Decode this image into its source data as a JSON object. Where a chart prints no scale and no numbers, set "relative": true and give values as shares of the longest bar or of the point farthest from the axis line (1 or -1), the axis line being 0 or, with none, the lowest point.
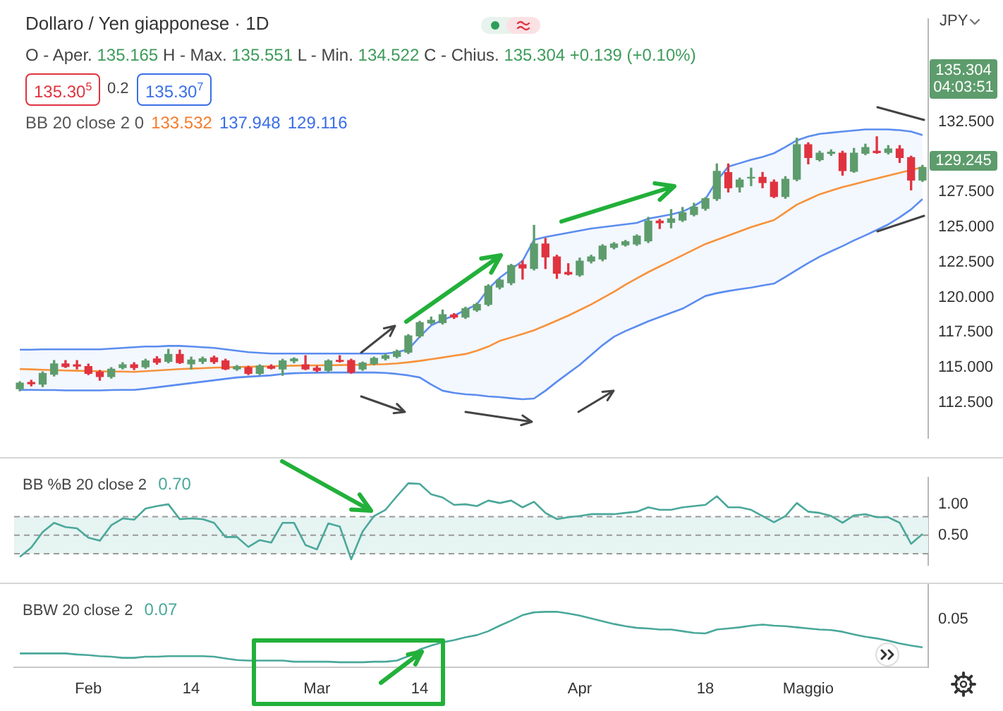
{
  "chart_data": [
    {
      "type": "candlestick",
      "title": "Dollaro / Yen giapponese · 1D",
      "annotations": [
        "O - Aper. 135.165 H - Max. 135.551 L - Min. 134.522 C - Chius. 135.304 +0.139 (+0.10%)",
        "135.30$^{5}$",
        "0.2",
        "135.30$^{7}$",
        "BB 20 close 2 0",
        "133.532",
        "137.948",
        "129.116",
        "JPY",
        "135.304",
        "04:03:51",
        "129.245"
      ],
      "categories": [
        null,
        null,
        null,
        null,
        null,
        null,
        null,
        null,
        null,
        null,
        null,
        null,
        null,
        null,
        null,
        null,
        null,
        null,
        null,
        null,
        null,
        null,
        null,
        null,
        null,
        null,
        null,
        null,
        null,
        null,
        null,
        null,
        null,
        null,
        null,
        null,
        null,
        null,
        null,
        null,
        null,
        null,
        null,
        null,
        null,
        null,
        null,
        null,
        null,
        null,
        null,
        null,
        null,
        null,
        null,
        null,
        null,
        null,
        null,
        null,
        null,
        null,
        null,
        null,
        null,
        null,
        null,
        null,
        null,
        null,
        null,
        null,
        null,
        null,
        null,
        null,
        null,
        null,
        null,
        null
      ],
      "ohlc": [
        [
          113.5,
          114.0,
          113.35,
          113.9
        ],
        [
          113.95,
          114.1,
          113.7,
          113.85
        ],
        [
          113.82,
          114.7,
          113.65,
          114.59
        ],
        [
          114.53,
          115.5,
          114.4,
          115.26
        ],
        [
          115.26,
          115.5,
          115.0,
          115.08
        ],
        [
          115.2,
          115.5,
          114.9,
          115.1
        ],
        [
          115.08,
          115.25,
          114.5,
          114.59
        ],
        [
          114.68,
          114.8,
          114.1,
          114.37
        ],
        [
          114.37,
          115.0,
          114.25,
          114.89
        ],
        [
          115.0,
          115.35,
          114.9,
          115.2
        ],
        [
          115.2,
          115.35,
          114.85,
          115.0
        ],
        [
          115.05,
          115.6,
          114.95,
          115.48
        ],
        [
          115.62,
          115.78,
          115.25,
          115.38
        ],
        [
          115.45,
          116.3,
          115.35,
          115.94
        ],
        [
          115.94,
          116.25,
          115.3,
          115.36
        ],
        [
          115.27,
          115.75,
          114.9,
          115.54
        ],
        [
          115.45,
          115.75,
          115.3,
          115.63
        ],
        [
          115.7,
          115.82,
          115.3,
          115.42
        ],
        [
          115.48,
          115.6,
          114.85,
          114.9
        ],
        [
          114.9,
          115.15,
          114.8,
          115.07
        ],
        [
          115.0,
          115.1,
          114.5,
          114.59
        ],
        [
          114.59,
          115.2,
          114.5,
          115.11
        ],
        [
          115.08,
          115.2,
          114.9,
          114.96
        ],
        [
          114.9,
          115.6,
          114.45,
          115.48
        ],
        [
          115.48,
          115.7,
          115.35,
          115.62
        ],
        [
          115.2,
          115.85,
          114.85,
          114.9
        ],
        [
          114.96,
          115.1,
          114.7,
          114.8
        ],
        [
          114.8,
          115.55,
          114.7,
          115.48
        ],
        [
          115.52,
          115.85,
          115.4,
          115.44
        ],
        [
          115.5,
          115.6,
          114.6,
          114.68
        ],
        [
          114.9,
          115.4,
          114.8,
          115.33
        ],
        [
          115.3,
          115.75,
          115.2,
          115.66
        ],
        [
          115.66,
          115.95,
          115.55,
          115.85
        ],
        [
          115.8,
          116.25,
          115.7,
          116.15
        ],
        [
          116.1,
          117.35,
          116.0,
          117.26
        ],
        [
          117.26,
          118.3,
          117.15,
          118.2
        ],
        [
          118.18,
          118.6,
          118.1,
          118.37
        ],
        [
          118.2,
          119.1,
          118.1,
          118.77
        ],
        [
          118.75,
          118.85,
          118.5,
          118.6
        ],
        [
          118.6,
          119.3,
          118.5,
          119.2
        ],
        [
          119.1,
          119.6,
          119.0,
          119.5
        ],
        [
          119.5,
          120.9,
          119.4,
          120.8
        ],
        [
          120.73,
          121.3,
          120.6,
          121.23
        ],
        [
          121.04,
          122.35,
          120.9,
          122.27
        ],
        [
          122.33,
          122.6,
          121.3,
          122.09
        ],
        [
          122.06,
          125.13,
          121.95,
          123.8
        ],
        [
          123.8,
          124.2,
          122.05,
          122.88
        ],
        [
          122.88,
          123.0,
          121.35,
          121.72
        ],
        [
          121.78,
          122.4,
          121.6,
          121.66
        ],
        [
          121.6,
          122.8,
          121.5,
          122.58
        ],
        [
          122.58,
          123.0,
          122.45,
          122.88
        ],
        [
          122.73,
          123.75,
          122.6,
          123.65
        ],
        [
          123.56,
          123.9,
          123.45,
          123.8
        ],
        [
          123.74,
          124.05,
          123.65,
          123.96
        ],
        [
          123.8,
          124.45,
          123.7,
          124.36
        ],
        [
          124.02,
          125.7,
          123.9,
          125.43
        ],
        [
          125.43,
          125.55,
          124.9,
          125.31
        ],
        [
          125.34,
          126.25,
          124.95,
          125.59
        ],
        [
          125.5,
          126.4,
          125.4,
          126.02
        ],
        [
          125.9,
          126.7,
          125.8,
          126.42
        ],
        [
          126.33,
          127.1,
          126.2,
          127.03
        ],
        [
          127.03,
          129.5,
          126.9,
          128.97
        ],
        [
          128.88,
          129.5,
          127.5,
          127.8
        ],
        [
          127.86,
          128.5,
          127.5,
          128.35
        ],
        [
          128.5,
          129.2,
          127.95,
          128.55
        ],
        [
          128.54,
          128.9,
          127.8,
          128.17
        ],
        [
          128.2,
          128.35,
          127.1,
          127.18
        ],
        [
          127.18,
          128.6,
          127.05,
          128.41
        ],
        [
          128.41,
          131.33,
          128.3,
          130.87
        ],
        [
          130.87,
          131.0,
          129.5,
          129.95
        ],
        [
          129.8,
          130.4,
          129.7,
          130.26
        ],
        [
          130.24,
          130.5,
          130.1,
          130.34
        ],
        [
          130.26,
          130.4,
          128.7,
          129.03
        ],
        [
          128.97,
          130.6,
          128.9,
          130.26
        ],
        [
          130.26,
          130.9,
          130.15,
          130.66
        ],
        [
          130.4,
          131.43,
          130.25,
          130.3
        ],
        [
          130.32,
          130.8,
          130.2,
          130.57
        ],
        [
          130.57,
          130.8,
          129.6,
          129.95
        ],
        [
          129.95,
          130.05,
          127.65,
          128.35
        ],
        [
          128.35,
          129.4,
          128.25,
          129.245
        ]
      ],
      "colors": [
        "#5d9c6c",
        "#e0333f",
        "#5d9c6c",
        "#5d9c6c",
        "#e0333f",
        "#e0333f",
        "#e0333f",
        "#e0333f",
        "#5d9c6c",
        "#5d9c6c",
        "#e0333f",
        "#5d9c6c",
        "#e0333f",
        "#5d9c6c",
        "#e0333f",
        "#5d9c6c",
        "#5d9c6c",
        "#e0333f",
        "#e0333f",
        "#5d9c6c",
        "#e0333f",
        "#5d9c6c",
        "#e0333f",
        "#5d9c6c",
        "#5d9c6c",
        "#e0333f",
        "#e0333f",
        "#5d9c6c",
        "#e0333f",
        "#e0333f",
        "#5d9c6c",
        "#5d9c6c",
        "#5d9c6c",
        "#5d9c6c",
        "#5d9c6c",
        "#5d9c6c",
        "#5d9c6c",
        "#5d9c6c",
        "#e0333f",
        "#5d9c6c",
        "#5d9c6c",
        "#5d9c6c",
        "#5d9c6c",
        "#5d9c6c",
        "#e0333f",
        "#5d9c6c",
        "#e0333f",
        "#e0333f",
        "#e0333f",
        "#5d9c6c",
        "#5d9c6c",
        "#5d9c6c",
        "#5d9c6c",
        "#5d9c6c",
        "#5d9c6c",
        "#5d9c6c",
        "#e0333f",
        "#5d9c6c",
        "#5d9c6c",
        "#5d9c6c",
        "#5d9c6c",
        "#5d9c6c",
        "#e0333f",
        "#5d9c6c",
        "#5d9c6c",
        "#e0333f",
        "#e0333f",
        "#5d9c6c",
        "#5d9c6c",
        "#e0333f",
        "#5d9c6c",
        "#5d9c6c",
        "#e0333f",
        "#5d9c6c",
        "#5d9c6c",
        "#e0333f",
        "#5d9c6c",
        "#e0333f",
        "#e0333f",
        "#5d9c6c"
      ],
      "series": [
        {
          "type": "line",
          "color": "#5b8def",
          "values": [
            116.28,
            116.28,
            116.3,
            116.3,
            116.3,
            116.3,
            116.3,
            116.3,
            116.35,
            116.4,
            116.45,
            116.5,
            116.5,
            116.55,
            116.55,
            116.5,
            116.45,
            116.4,
            116.3,
            116.2,
            116.1,
            116.05,
            116.0,
            116.0,
            116.0,
            116.0,
            116.0,
            116.0,
            116.0,
            116.0,
            116.0,
            116.0,
            116.0,
            116.1,
            116.3,
            117.2,
            118.0,
            118.4,
            118.7,
            119.1,
            119.5,
            120.6,
            121.4,
            122.0,
            122.6,
            124.1,
            124.3,
            124.45,
            124.6,
            124.75,
            124.9,
            125.0,
            125.1,
            125.2,
            125.3,
            125.6,
            125.75,
            125.9,
            126.1,
            126.5,
            127.0,
            128.3,
            129.3,
            129.55,
            129.8,
            130.0,
            130.26,
            130.7,
            131.18,
            131.45,
            131.64,
            131.72,
            131.8,
            131.88,
            131.95,
            131.95,
            131.95,
            131.9,
            131.8,
            131.55
          ]
        },
        {
          "type": "line",
          "color": "#5b8def",
          "values": [
            113.42,
            113.42,
            113.4,
            113.4,
            113.38,
            113.38,
            113.38,
            113.38,
            113.4,
            113.42,
            113.42,
            113.5,
            113.6,
            113.7,
            113.8,
            113.9,
            114.0,
            114.1,
            114.2,
            114.3,
            114.35,
            114.4,
            114.45,
            114.55,
            114.6,
            114.62,
            114.64,
            114.65,
            114.65,
            114.65,
            114.65,
            114.65,
            114.62,
            114.55,
            114.45,
            114.3,
            113.8,
            113.36,
            113.2,
            113.1,
            113.05,
            112.95,
            112.9,
            112.82,
            112.75,
            112.8,
            113.36,
            114.0,
            114.6,
            115.2,
            115.9,
            116.6,
            117.2,
            117.6,
            117.95,
            118.3,
            118.6,
            118.9,
            119.2,
            119.65,
            120.1,
            120.3,
            120.45,
            120.58,
            120.7,
            120.85,
            120.98,
            121.45,
            121.96,
            122.45,
            122.9,
            123.28,
            123.65,
            124.05,
            124.42,
            124.8,
            125.19,
            125.7,
            126.26,
            127.0
          ]
        },
        {
          "type": "line",
          "color": "#f7923a",
          "values": [
            114.9,
            114.88,
            114.85,
            114.82,
            114.8,
            114.78,
            114.76,
            114.74,
            114.72,
            114.72,
            114.7,
            114.75,
            114.8,
            114.85,
            114.9,
            114.93,
            114.96,
            115.0,
            115.02,
            115.04,
            115.06,
            115.08,
            115.1,
            115.12,
            115.14,
            115.15,
            115.16,
            115.17,
            115.18,
            115.2,
            115.2,
            115.22,
            115.25,
            115.3,
            115.38,
            115.48,
            115.6,
            115.72,
            115.85,
            115.97,
            116.2,
            116.5,
            116.9,
            117.15,
            117.4,
            117.66,
            118.0,
            118.35,
            118.7,
            119.1,
            119.5,
            119.95,
            120.4,
            120.9,
            121.35,
            121.8,
            122.2,
            122.6,
            123.0,
            123.4,
            123.8,
            124.1,
            124.4,
            124.7,
            125.0,
            125.25,
            125.5,
            126.05,
            126.6,
            126.97,
            127.34,
            127.6,
            127.85,
            128.05,
            128.26,
            128.46,
            128.66,
            128.87,
            129.07,
            129.27
          ],
          "upper": [
            116.28,
            116.28,
            116.3,
            116.3,
            116.3,
            116.3,
            116.3,
            116.3,
            116.35,
            116.4,
            116.45,
            116.5,
            116.5,
            116.55,
            116.55,
            116.5,
            116.45,
            116.4,
            116.3,
            116.2,
            116.1,
            116.05,
            116.0,
            116.0,
            116.0,
            116.0,
            116.0,
            116.0,
            116.0,
            116.0,
            116.0,
            116.0,
            116.0,
            116.1,
            116.3,
            117.2,
            118.0,
            118.4,
            118.7,
            119.1,
            119.5,
            120.6,
            121.4,
            122.0,
            122.6,
            124.1,
            124.3,
            124.45,
            124.6,
            124.75,
            124.9,
            125.0,
            125.1,
            125.2,
            125.3,
            125.6,
            125.75,
            125.9,
            126.1,
            126.5,
            127.0,
            128.3,
            129.3,
            129.55,
            129.8,
            130.0,
            130.26,
            130.7,
            131.18,
            131.45,
            131.64,
            131.72,
            131.8,
            131.88,
            131.95,
            131.95,
            131.95,
            131.9,
            131.8,
            131.55
          ],
          "lower": [
            113.42,
            113.42,
            113.4,
            113.4,
            113.38,
            113.38,
            113.38,
            113.38,
            113.4,
            113.42,
            113.42,
            113.5,
            113.6,
            113.7,
            113.8,
            113.9,
            114.0,
            114.1,
            114.2,
            114.3,
            114.35,
            114.4,
            114.45,
            114.55,
            114.6,
            114.62,
            114.64,
            114.65,
            114.65,
            114.65,
            114.65,
            114.65,
            114.62,
            114.55,
            114.45,
            114.3,
            113.8,
            113.36,
            113.2,
            113.1,
            113.05,
            112.95,
            112.9,
            112.82,
            112.75,
            112.8,
            113.36,
            114.0,
            114.6,
            115.2,
            115.9,
            116.6,
            117.2,
            117.6,
            117.95,
            118.3,
            118.6,
            118.9,
            119.2,
            119.65,
            120.1,
            120.3,
            120.45,
            120.58,
            120.7,
            120.85,
            120.98,
            121.45,
            121.96,
            122.45,
            122.9,
            123.28,
            123.65,
            124.05,
            124.42,
            124.8,
            125.19,
            125.7,
            126.26,
            127.0
          ]
        }
      ],
      "ylim": [
        110,
        139.8
      ],
      "yticks": [
        {
          "value": 112.5,
          "label": "112.500"
        },
        {
          "value": 115,
          "label": "115.000"
        },
        {
          "value": 117.5,
          "label": "117.500"
        },
        {
          "value": 120,
          "label": "120.000"
        },
        {
          "value": 122.5,
          "label": "122.500"
        },
        {
          "value": 125,
          "label": "125.000"
        },
        {
          "value": 127.5,
          "label": "127.500"
        },
        {
          "value": 132.5,
          "label": "132.500"
        }
      ],
      "marker": "none",
      "tick_labels": "y"
    },
    {
      "type": "line",
      "title": "BB %B 20 close 2",
      "annotations": [
        "0.70"
      ],
      "categories": [
        null,
        null,
        null,
        null,
        null,
        null,
        null,
        null,
        null,
        null,
        null,
        null,
        null,
        null,
        null,
        null,
        null,
        null,
        null,
        null,
        null,
        null,
        null,
        null,
        null,
        null,
        null,
        null,
        null,
        null,
        null,
        null,
        null,
        null,
        null,
        null,
        null,
        null,
        null,
        null,
        null,
        null,
        null,
        null,
        null,
        null,
        null,
        null,
        null,
        null,
        null,
        null,
        null,
        null,
        null,
        null,
        null,
        null,
        null,
        null,
        null,
        null,
        null,
        null,
        null,
        null,
        null,
        null,
        null,
        null,
        null,
        null,
        null,
        null,
        null,
        null,
        null,
        null,
        null,
        null
      ],
      "series": [
        {
          "color": "#4aa89a",
          "values": [
            0.15,
            0.3,
            0.55,
            0.7,
            0.63,
            0.61,
            0.46,
            0.41,
            0.66,
            0.77,
            0.75,
            0.93,
            0.97,
            1.0,
            0.76,
            0.77,
            0.76,
            0.7,
            0.47,
            0.47,
            0.31,
            0.42,
            0.38,
            0.7,
            0.7,
            0.34,
            0.27,
            0.69,
            0.64,
            0.11,
            0.56,
            0.81,
            0.91,
            1.13,
            1.34,
            1.33,
            1.16,
            1.11,
            0.99,
            1.0,
            0.97,
            1.06,
            1.02,
            1.06,
            0.95,
            1.04,
            0.86,
            0.76,
            0.79,
            0.81,
            0.84,
            0.84,
            0.84,
            0.86,
            0.88,
            0.95,
            0.91,
            0.91,
            0.95,
            0.97,
            0.99,
            1.13,
            0.95,
            0.95,
            0.91,
            0.81,
            0.71,
            0.81,
            1.02,
            0.88,
            0.86,
            0.81,
            0.7,
            0.82,
            0.84,
            0.79,
            0.79,
            0.7,
            0.36,
            0.52
          ]
        }
      ],
      "ref_lines": [
        {
          "axis": "y",
          "value": 0.8,
          "color": "#9a9a9a",
          "line_style": "dashed"
        },
        {
          "axis": "y",
          "value": 0.5,
          "color": "#9a9a9a",
          "line_style": "dashed"
        },
        {
          "axis": "y",
          "value": 0.2,
          "color": "#9a9a9a",
          "line_style": "dashed"
        }
      ],
      "bands": [
        {
          "axis": "y",
          "from": 0.2,
          "to": 0.8,
          "color": "#e6f4f2"
        }
      ],
      "ylim": [
        0.02,
        1.43
      ],
      "yticks": [
        {
          "value": 0.5,
          "label": "0.50"
        },
        {
          "value": 1.0,
          "label": "1.00"
        }
      ],
      "marker": "none",
      "tick_labels": "y"
    },
    {
      "type": "line",
      "title": "BBW 20 close 2",
      "annotations": [
        "0.07",
        "0.05"
      ],
      "relative": true,
      "categories": [
        null,
        null,
        null,
        null,
        null,
        null,
        "Feb",
        null,
        null,
        null,
        null,
        null,
        null,
        null,
        null,
        "14",
        null,
        null,
        null,
        null,
        null,
        null,
        null,
        null,
        null,
        null,
        "Mar",
        null,
        null,
        null,
        null,
        null,
        null,
        null,
        null,
        "14",
        null,
        null,
        null,
        null,
        null,
        null,
        null,
        null,
        null,
        null,
        null,
        null,
        null,
        "Apr",
        null,
        null,
        null,
        null,
        null,
        null,
        null,
        null,
        null,
        null,
        "18",
        null,
        null,
        null,
        null,
        null,
        null,
        null,
        null,
        "Maggio",
        null,
        null,
        null,
        null,
        null,
        null,
        null,
        null,
        null,
        null
      ],
      "series": [
        {
          "color": "#4aa89a",
          "values": [
            0.25,
            0.25,
            0.25,
            0.25,
            0.25,
            0.23,
            0.22,
            0.2,
            0.19,
            0.17,
            0.17,
            0.19,
            0.19,
            0.2,
            0.2,
            0.2,
            0.2,
            0.19,
            0.16,
            0.13,
            0.12,
            0.12,
            0.12,
            0.12,
            0.1,
            0.1,
            0.1,
            0.1,
            0.09,
            0.09,
            0.09,
            0.1,
            0.1,
            0.12,
            0.2,
            0.32,
            0.39,
            0.45,
            0.49,
            0.54,
            0.58,
            0.65,
            0.75,
            0.84,
            0.94,
            0.99,
            1,
            1,
            0.97,
            0.93,
            0.88,
            0.83,
            0.78,
            0.74,
            0.71,
            0.7,
            0.68,
            0.68,
            0.65,
            0.62,
            0.61,
            0.68,
            0.7,
            0.72,
            0.75,
            0.77,
            0.75,
            0.74,
            0.72,
            0.7,
            0.68,
            0.67,
            0.64,
            0.59,
            0.55,
            0.52,
            0.48,
            0.43,
            0.39,
            0.36
          ]
        }
      ],
      "marker": "none"
    }
  ]
}
